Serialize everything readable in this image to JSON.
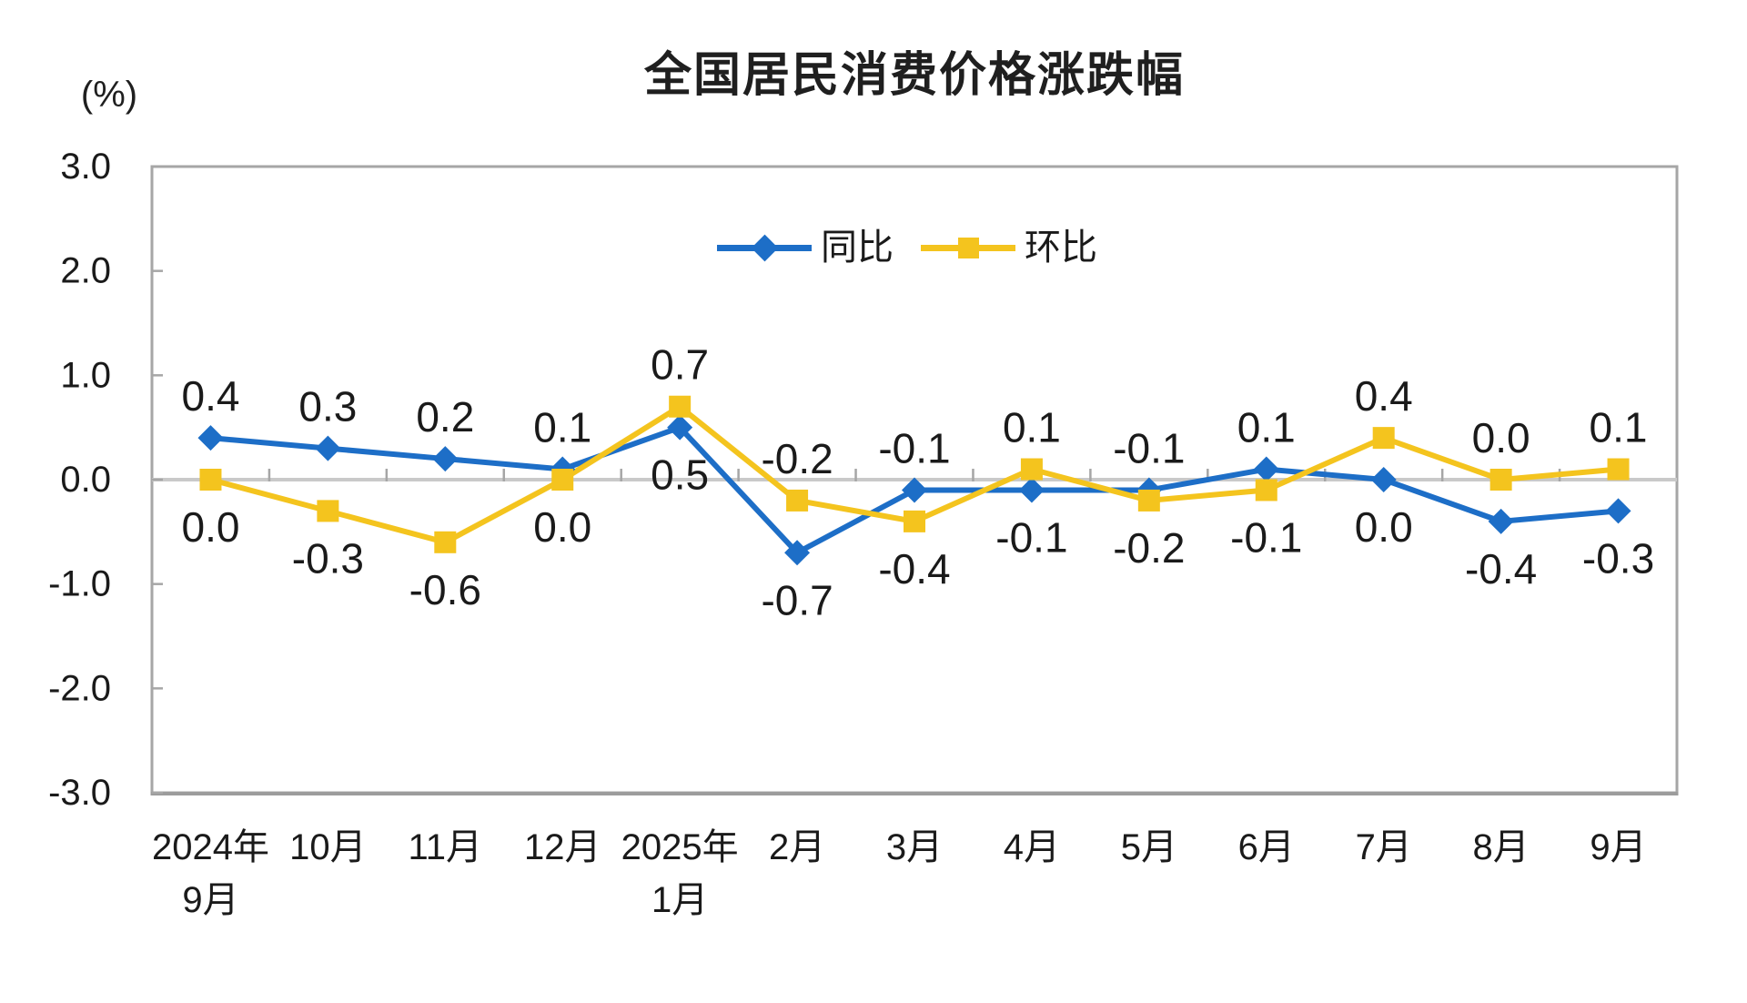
{
  "chart_data": {
    "type": "line",
    "title": "全国居民消费价格涨跌幅",
    "unit_label": "(%)",
    "categories": [
      [
        "2024年",
        "9月"
      ],
      [
        "10月"
      ],
      [
        "11月"
      ],
      [
        "12月"
      ],
      [
        "2025年",
        "1月"
      ],
      [
        "2月"
      ],
      [
        "3月"
      ],
      [
        "4月"
      ],
      [
        "5月"
      ],
      [
        "6月"
      ],
      [
        "7月"
      ],
      [
        "8月"
      ],
      [
        "9月"
      ]
    ],
    "series": [
      {
        "key": "yoy",
        "name": "同比",
        "marker": "diamond",
        "color": "#1D6EC7",
        "values": [
          0.4,
          0.3,
          0.2,
          0.1,
          0.5,
          -0.7,
          -0.1,
          -0.1,
          -0.1,
          0.1,
          0.0,
          -0.4,
          -0.3
        ]
      },
      {
        "key": "mom",
        "name": "环比",
        "marker": "square",
        "color": "#F4C41E",
        "values": [
          0.0,
          -0.3,
          -0.6,
          0.0,
          0.7,
          -0.2,
          -0.4,
          0.1,
          -0.2,
          -0.1,
          0.4,
          0.0,
          0.1
        ]
      }
    ],
    "ylim": [
      -3.0,
      3.0
    ],
    "yticks": [
      3.0,
      2.0,
      1.0,
      0.0,
      -1.0,
      -2.0,
      -3.0
    ],
    "ytick_labels": [
      "3.0",
      "2.0",
      "1.0",
      "0.0",
      "-1.0",
      "-2.0",
      "-3.0"
    ],
    "grid": "zero-line-only",
    "legend_position": "top-center-inside",
    "axis_color": "#A6A6A6",
    "bottom_axis_color": "#9C9C9C",
    "zero_line_color": "#C9C9C9",
    "label_color": "#1A1A1A"
  }
}
